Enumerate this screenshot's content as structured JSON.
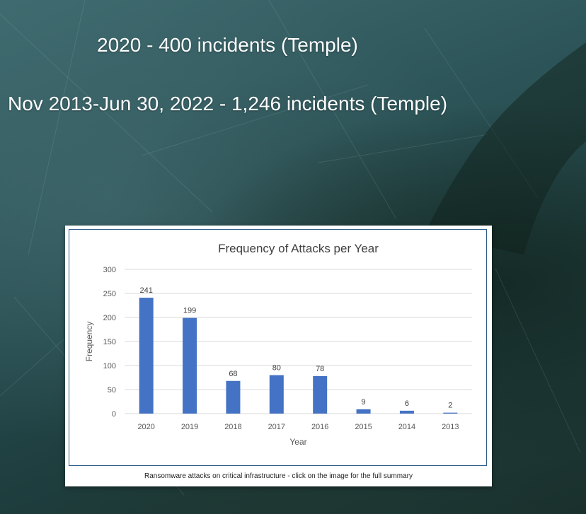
{
  "slide": {
    "headline_1": "2020 - 400 incidents (Temple)",
    "headline_2": "Nov 2013-Jun 30, 2022 - 1,246  incidents (Temple)"
  },
  "chart_data": {
    "type": "bar",
    "title": "Frequency of Attacks per Year",
    "xlabel": "Year",
    "ylabel": "Frequency",
    "categories": [
      "2020",
      "2019",
      "2018",
      "2017",
      "2016",
      "2015",
      "2014",
      "2013"
    ],
    "values": [
      241,
      199,
      68,
      80,
      78,
      9,
      6,
      2
    ],
    "ylim": [
      0,
      300
    ],
    "yticks": [
      0,
      50,
      100,
      150,
      200,
      250,
      300
    ],
    "grid": true,
    "bar_color": "#4472c4",
    "data_labels": true
  },
  "caption": "Ransomware attacks on critical infrastructure - click on the image for the full summary"
}
